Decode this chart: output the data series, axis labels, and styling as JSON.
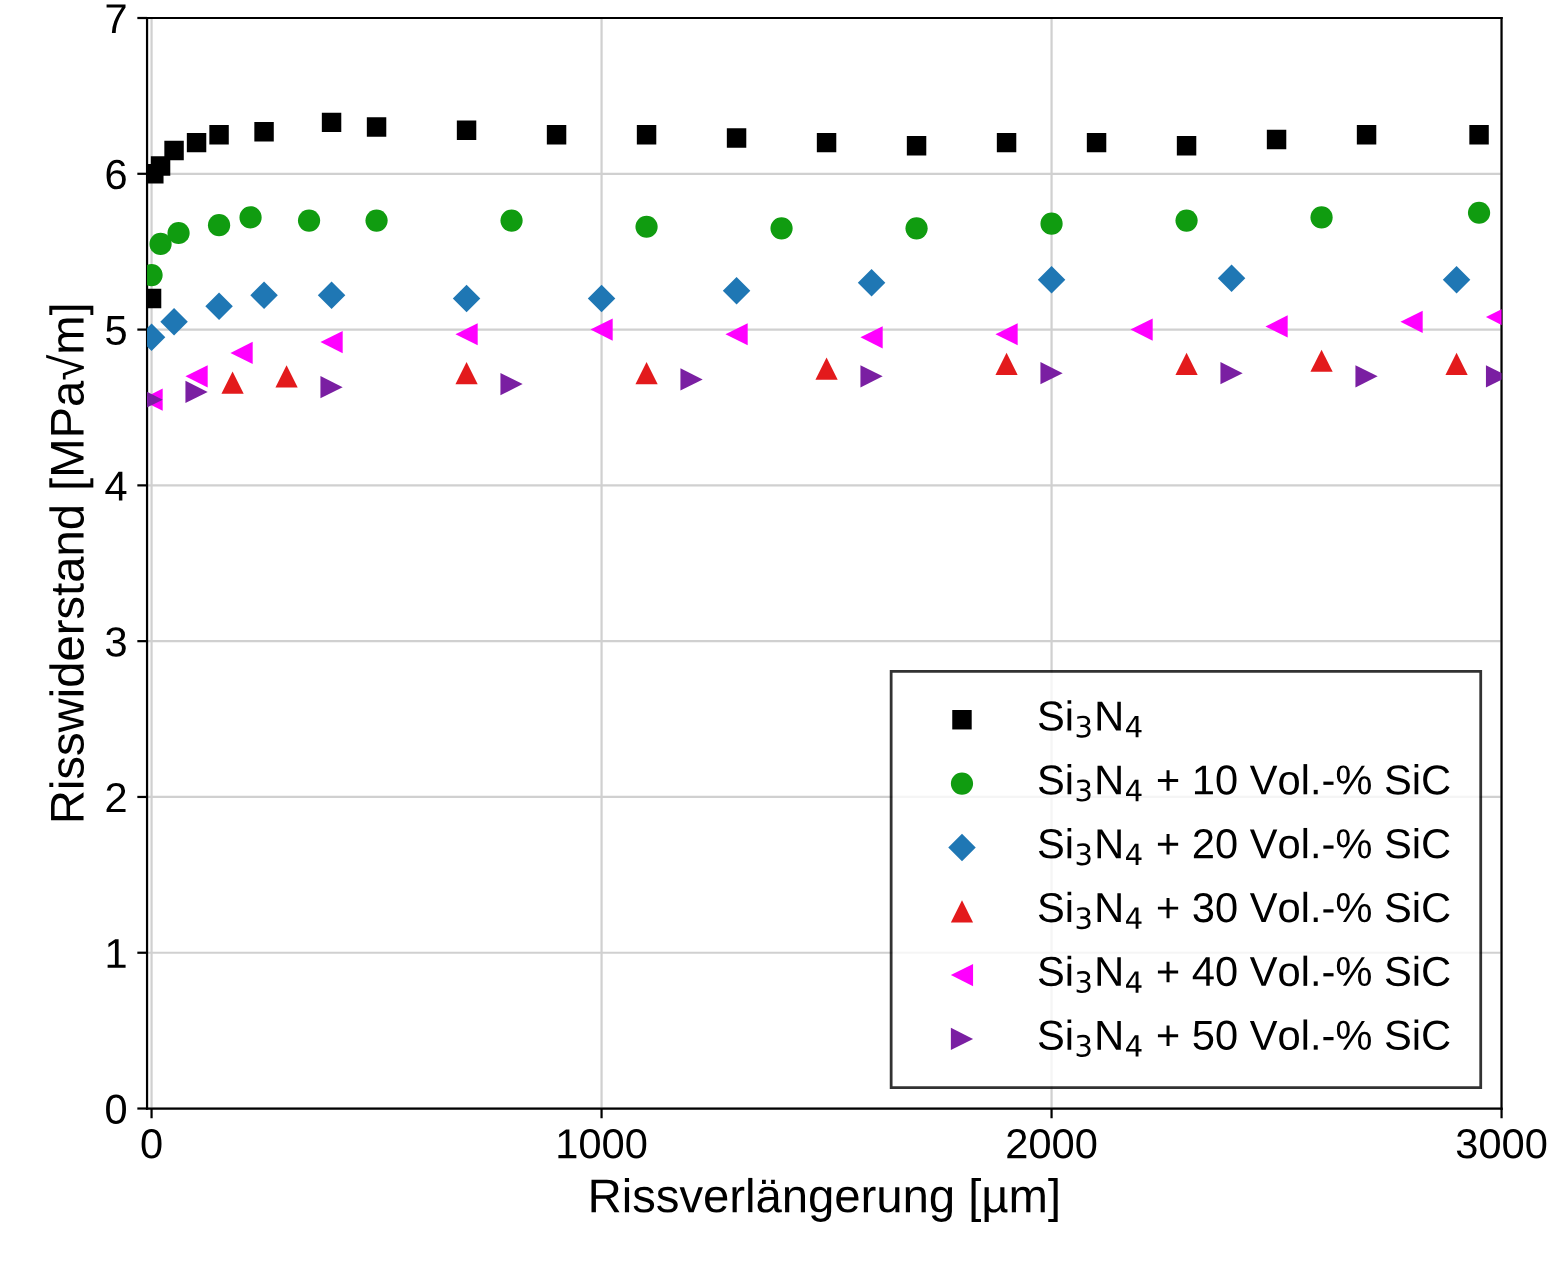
{
  "chart_data": {
    "type": "scatter",
    "xlabel": "Rissverlängerung [µm]",
    "ylabel": "Risswiderstand [MPa√m]",
    "xlim": [
      -10,
      3000
    ],
    "ylim": [
      0,
      7
    ],
    "xticks": [
      0,
      1000,
      2000,
      3000
    ],
    "yticks": [
      0,
      1,
      2,
      3,
      4,
      5,
      6,
      7
    ],
    "grid": true,
    "legend": "bottom right",
    "series": [
      {
        "name": "Si$_{3}$N$_{4}$",
        "color": "#000000",
        "marker": "square",
        "x": [
          0,
          5,
          20,
          50,
          100,
          150,
          250,
          400,
          500,
          700,
          900,
          1100,
          1300,
          1500,
          1700,
          1900,
          2100,
          2300,
          2500,
          2700,
          2950
        ],
        "values": [
          5.2,
          6.0,
          6.05,
          6.15,
          6.2,
          6.25,
          6.27,
          6.33,
          6.3,
          6.28,
          6.25,
          6.25,
          6.23,
          6.2,
          6.18,
          6.2,
          6.2,
          6.18,
          6.22,
          6.25,
          6.25
        ]
      },
      {
        "name": "Si$_{3}$N$_{4}$ + 10 Vol.-% SiC",
        "color": "#109c10",
        "marker": "circle",
        "x": [
          0,
          20,
          60,
          150,
          220,
          350,
          500,
          800,
          1100,
          1400,
          1700,
          2000,
          2300,
          2600,
          2950
        ],
        "values": [
          5.35,
          5.55,
          5.62,
          5.67,
          5.72,
          5.7,
          5.7,
          5.7,
          5.66,
          5.65,
          5.65,
          5.68,
          5.7,
          5.72,
          5.75
        ]
      },
      {
        "name": "Si$_{3}$N$_{4}$ + 20 Vol.-% SiC",
        "color": "#1f77b4",
        "marker": "diamond",
        "x": [
          0,
          50,
          150,
          250,
          400,
          700,
          1000,
          1300,
          1600,
          2000,
          2400,
          2900
        ],
        "values": [
          4.95,
          5.05,
          5.15,
          5.22,
          5.22,
          5.2,
          5.2,
          5.25,
          5.3,
          5.32,
          5.33,
          5.32
        ]
      },
      {
        "name": "Si$_{3}$N$_{4}$ + 30 Vol.-% SiC",
        "color": "#e31a1c",
        "marker": "triangle",
        "x": [
          180,
          300,
          700,
          1100,
          1500,
          1900,
          2300,
          2600,
          2900
        ],
        "values": [
          4.66,
          4.7,
          4.72,
          4.72,
          4.75,
          4.78,
          4.78,
          4.8,
          4.78
        ]
      },
      {
        "name": "Si$_{3}$N$_{4}$ + 40 Vol.-% SiC",
        "color": "#ff00ff",
        "marker": "triangle_left",
        "x": [
          0,
          100,
          200,
          400,
          700,
          1000,
          1300,
          1600,
          1900,
          2200,
          2500,
          2800,
          2990
        ],
        "values": [
          4.55,
          4.7,
          4.85,
          4.92,
          4.97,
          5.0,
          4.97,
          4.95,
          4.97,
          5.0,
          5.02,
          5.05,
          5.08
        ]
      },
      {
        "name": "Si$_{3}$N$_{4}$ + 50 Vol.-% SiC",
        "color": "#7a1fa2",
        "marker": "triangle_right",
        "x": [
          0,
          100,
          400,
          800,
          1200,
          1600,
          2000,
          2400,
          2700,
          2990
        ],
        "values": [
          4.55,
          4.6,
          4.63,
          4.65,
          4.68,
          4.7,
          4.72,
          4.72,
          4.7,
          4.7
        ]
      }
    ]
  }
}
